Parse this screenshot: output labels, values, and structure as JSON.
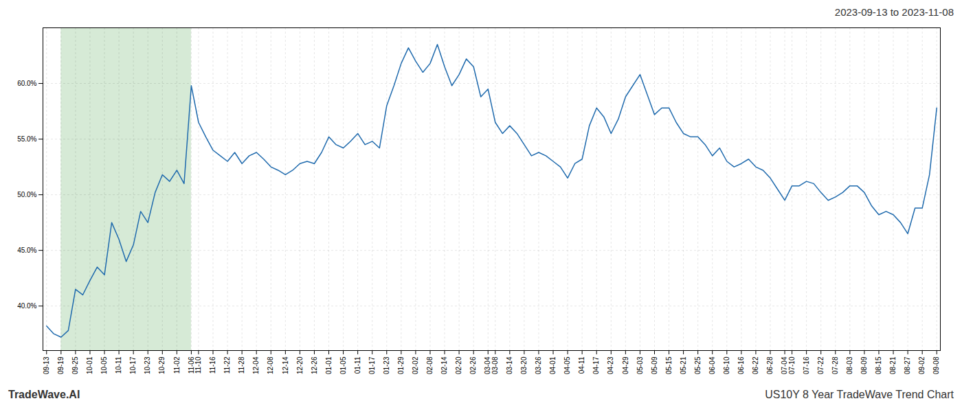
{
  "chart_data": {
    "type": "line",
    "title": "2023-09-13 to 2023-11-08",
    "annotations": [
      "TradeWave.AI",
      "US10Y 8 Year TradeWave Trend Chart"
    ],
    "color": "#1f6aad",
    "grid": true,
    "ylim": [
      36,
      65
    ],
    "yticks": [
      {
        "value": 40.0,
        "label": "40.0%"
      },
      {
        "value": 45.0,
        "label": "45.0%"
      },
      {
        "value": 50.0,
        "label": "50.0%"
      },
      {
        "value": 55.0,
        "label": "55.0%"
      },
      {
        "value": 60.0,
        "label": "60.0%"
      }
    ],
    "shade": {
      "from": "09-19",
      "to": "11-06",
      "color": "#d6ead6"
    },
    "categories": [
      "09-13",
      null,
      "09-19",
      null,
      "09-25",
      null,
      "10-01",
      null,
      "10-05",
      null,
      "10-11",
      null,
      "10-17",
      null,
      "10-23",
      null,
      "10-29",
      null,
      "11-02",
      null,
      "11-06",
      "11-10",
      null,
      "11-16",
      null,
      "11-22",
      null,
      "11-28",
      null,
      "12-04",
      null,
      "12-08",
      null,
      "12-14",
      null,
      "12-20",
      null,
      "12-26",
      null,
      "01-01",
      null,
      "01-05",
      null,
      "01-11",
      null,
      "01-17",
      null,
      "01-23",
      null,
      "01-29",
      null,
      "02-02",
      null,
      "02-08",
      null,
      "02-14",
      null,
      "02-20",
      null,
      "02-26",
      null,
      "03-04",
      "03-08",
      null,
      "03-14",
      null,
      "03-20",
      null,
      "03-26",
      null,
      "04-01",
      null,
      "04-05",
      null,
      "04-11",
      null,
      "04-17",
      null,
      "04-23",
      null,
      "04-29",
      null,
      "05-03",
      null,
      "05-09",
      null,
      "05-15",
      null,
      "05-21",
      null,
      "05-25",
      null,
      "06-04",
      null,
      "06-10",
      null,
      "06-16",
      null,
      "06-22",
      null,
      "06-28",
      null,
      "07-04",
      "07-10",
      null,
      "07-16",
      null,
      "07-22",
      null,
      "07-28",
      null,
      "08-03",
      null,
      "08-09",
      null,
      "08-15",
      null,
      "08-21",
      null,
      "08-27",
      null,
      "09-02",
      null,
      "09-08"
    ],
    "values": [
      38.2,
      37.5,
      37.2,
      37.8,
      41.5,
      41.0,
      42.3,
      43.5,
      42.8,
      47.5,
      46.0,
      44.0,
      45.5,
      48.5,
      47.5,
      50.2,
      51.8,
      51.2,
      52.2,
      51.0,
      59.8,
      56.5,
      55.2,
      54.0,
      53.5,
      53.0,
      53.8,
      52.8,
      53.5,
      53.8,
      53.2,
      52.5,
      52.2,
      51.8,
      52.2,
      52.8,
      53.0,
      52.8,
      53.8,
      55.2,
      54.5,
      54.2,
      54.8,
      55.5,
      54.5,
      54.8,
      54.2,
      58.0,
      59.8,
      61.8,
      63.2,
      62.0,
      61.0,
      61.8,
      63.5,
      61.5,
      59.8,
      60.8,
      62.2,
      61.5,
      58.8,
      59.5,
      56.5,
      55.5,
      56.2,
      55.5,
      54.5,
      53.5,
      53.8,
      53.5,
      53.0,
      52.5,
      51.5,
      52.8,
      53.2,
      56.2,
      57.8,
      57.0,
      55.5,
      56.8,
      58.8,
      59.8,
      60.8,
      59.0,
      57.2,
      57.8,
      57.8,
      56.5,
      55.5,
      55.2,
      55.2,
      54.5,
      53.5,
      54.2,
      53.0,
      52.5,
      52.8,
      53.2,
      52.5,
      52.2,
      51.5,
      50.5,
      49.5,
      50.8,
      50.8,
      51.2,
      51.0,
      50.2,
      49.5,
      49.8,
      50.2,
      50.8,
      50.8,
      50.2,
      49.0,
      48.2,
      48.5,
      48.2,
      47.5,
      46.5,
      48.8,
      48.8,
      51.8,
      57.8
    ]
  }
}
